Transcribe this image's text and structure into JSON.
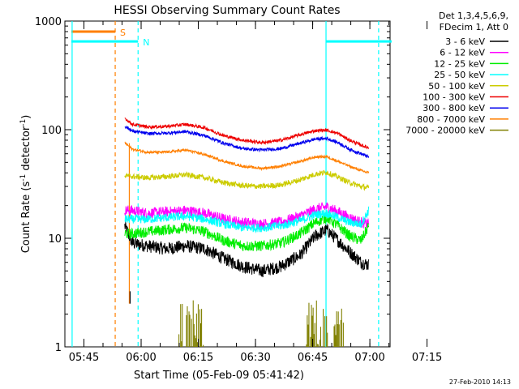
{
  "chart_data": {
    "type": "line",
    "title": "HESSI Observing Summary Count Rates",
    "xlabel": "Start Time (05-Feb-09 05:41:42)",
    "ylabel_main": "Count Rate (s",
    "ylabel_sup1": "-1",
    "ylabel_mid": " detector",
    "ylabel_sup2": "-1",
    "ylabel_end": ")",
    "y_scale": "log",
    "ylim": [
      1,
      1000
    ],
    "xlim_minutes": [
      -1.7,
      83.6
    ],
    "x_ticks": [
      "05:45",
      "06:00",
      "06:15",
      "06:30",
      "06:45",
      "07:00",
      "07:15"
    ],
    "y_ticks": [
      "1",
      "10",
      "100",
      "1000"
    ],
    "legend_header": [
      "Det 1,3,4,5,6,9,",
      "FDecim 1, Att 0"
    ],
    "legend": [
      {
        "label": "3 - 6 keV",
        "color": "#000000"
      },
      {
        "label": "6 - 12 keV",
        "color": "#ff00ff"
      },
      {
        "label": "12 - 25 keV",
        "color": "#00ee00"
      },
      {
        "label": "25 - 50 keV",
        "color": "#00ffff"
      },
      {
        "label": "50 - 100 keV",
        "color": "#cccc00"
      },
      {
        "label": "100 - 300 keV",
        "color": "#ee0000"
      },
      {
        "label": "300 - 800 keV",
        "color": "#0000ee"
      },
      {
        "label": "800 - 7000 keV",
        "color": "#ff7f00"
      },
      {
        "label": "7000 - 20000 keV",
        "color": "#808000"
      }
    ],
    "series": [
      {
        "name": "3 - 6 keV",
        "color": "#000000",
        "noise": 0.06,
        "x": [
          14,
          16,
          20,
          25,
          30,
          35,
          40,
          45,
          50,
          55,
          60,
          64,
          67,
          70,
          73,
          76,
          78
        ],
        "y": [
          13,
          9,
          8.5,
          8,
          8.5,
          8,
          6.5,
          5.5,
          5,
          5.5,
          7,
          10.5,
          12,
          9.5,
          7.5,
          6,
          5.7
        ]
      },
      {
        "name": "6 - 12 keV",
        "color": "#ff00ff",
        "noise": 0.05,
        "x": [
          14,
          16,
          20,
          25,
          30,
          35,
          40,
          45,
          50,
          55,
          60,
          64,
          67,
          70,
          73,
          76,
          78
        ],
        "y": [
          18,
          18,
          17,
          17.5,
          18,
          17,
          15,
          14,
          13.5,
          14,
          16,
          18.5,
          19.5,
          17.5,
          15.5,
          14,
          13.5
        ]
      },
      {
        "name": "12 - 25 keV",
        "color": "#00ee00",
        "noise": 0.05,
        "x": [
          14,
          16,
          20,
          25,
          30,
          35,
          40,
          45,
          50,
          55,
          60,
          64,
          67,
          70,
          73,
          76,
          78
        ],
        "y": [
          11,
          11,
          11.5,
          12,
          12.5,
          11.5,
          9.5,
          8.5,
          8.5,
          9,
          11,
          14,
          15.5,
          13,
          10.5,
          9.5,
          13
        ]
      },
      {
        "name": "25 - 50 keV",
        "color": "#00ffff",
        "noise": 0.04,
        "x": [
          14,
          16,
          20,
          25,
          30,
          35,
          40,
          45,
          50,
          55,
          60,
          64,
          67,
          70,
          73,
          76,
          78
        ],
        "y": [
          15,
          15,
          15,
          15.5,
          16,
          15,
          13.5,
          12.5,
          12.5,
          13,
          14.5,
          16.5,
          17,
          15.5,
          14,
          13.5,
          18
        ]
      },
      {
        "name": "50 - 100 keV",
        "color": "#cccc00",
        "noise": 0.025,
        "x": [
          14,
          16,
          20,
          25,
          30,
          35,
          40,
          45,
          50,
          55,
          60,
          64,
          67,
          70,
          73,
          76,
          78
        ],
        "y": [
          38,
          37,
          36,
          37,
          38.5,
          36,
          32.5,
          30.5,
          30,
          31,
          34.5,
          39,
          40.5,
          36.5,
          32.5,
          30,
          29
        ]
      },
      {
        "name": "100 - 300 keV",
        "color": "#ee0000",
        "noise": 0.015,
        "x": [
          14,
          16,
          20,
          25,
          30,
          35,
          40,
          45,
          50,
          55,
          60,
          64,
          67,
          70,
          73,
          76,
          78
        ],
        "y": [
          128,
          112,
          106,
          107,
          112,
          104,
          88,
          80,
          76,
          80,
          90,
          98,
          99,
          92,
          80,
          72,
          68
        ]
      },
      {
        "name": "300 - 800 keV",
        "color": "#0000ee",
        "noise": 0.015,
        "x": [
          14,
          16,
          20,
          25,
          30,
          35,
          40,
          45,
          50,
          55,
          60,
          64,
          67,
          70,
          73,
          76,
          78
        ],
        "y": [
          108,
          97,
          92,
          93,
          96,
          88,
          75,
          67,
          65,
          67,
          75,
          82,
          83,
          76,
          66,
          60,
          56
        ]
      },
      {
        "name": "800 - 7000 keV",
        "color": "#ff7f00",
        "noise": 0.012,
        "x": [
          14,
          16,
          20,
          25,
          30,
          35,
          40,
          45,
          50,
          55,
          60,
          64,
          67,
          70,
          73,
          76,
          78
        ],
        "y": [
          76,
          66,
          62,
          62,
          65,
          59,
          51,
          46,
          44,
          46,
          51,
          56,
          56.5,
          51,
          46,
          42,
          40
        ]
      },
      {
        "name": "7000 - 20000 keV",
        "color": "#808000",
        "type": "bursts",
        "bursts_x": [
          [
            28,
            35
          ],
          [
            61,
            72
          ]
        ],
        "burst_y_max": 2.7
      }
    ],
    "flag_lines": [
      {
        "label": "S",
        "color": "#ff7f00",
        "style": "dashed",
        "x": 11.5,
        "ylevel": 800,
        "bar_x": [
          0,
          11.5
        ]
      },
      {
        "label": "N",
        "color": "#00ffff",
        "style": "dashed",
        "x": 17.5,
        "ylevel": 650,
        "bar_x": [
          0,
          17.5
        ]
      },
      {
        "label": "",
        "color": "#00ffff",
        "style": "solid",
        "x": 0.2,
        "ylevel": 650
      },
      {
        "label": "",
        "color": "#00ffff",
        "style": "solid",
        "x": 66.8,
        "ylevel": 650,
        "bar_x": [
          66.8,
          84
        ]
      },
      {
        "label": "",
        "color": "#00ffff",
        "style": "dashed",
        "x": 80.6,
        "ylevel": 650
      }
    ],
    "orange_spike": {
      "x": 15.2,
      "y_low": 2.5,
      "y_high": 75
    },
    "grid": false,
    "legend_placement": "right"
  },
  "footer": {
    "timestamp": "27-Feb-2010 14:13"
  }
}
